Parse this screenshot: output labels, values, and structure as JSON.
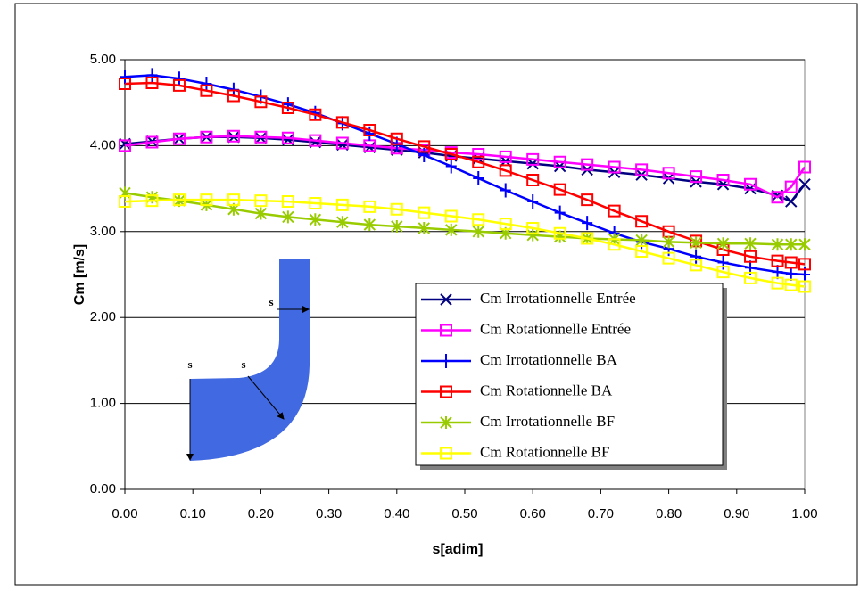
{
  "chart_data": {
    "type": "line",
    "x_label": "s[adim]",
    "y_label": "Cm [m/s]",
    "x": [
      0,
      0.04,
      0.08,
      0.12,
      0.16,
      0.2,
      0.24,
      0.28,
      0.32,
      0.36,
      0.4,
      0.44,
      0.48,
      0.52,
      0.56,
      0.6,
      0.64,
      0.68,
      0.72,
      0.76,
      0.8,
      0.84,
      0.88,
      0.92,
      0.96,
      0.98,
      1.0
    ],
    "series": [
      {
        "name": "Cm Irrotationnelle Entrée",
        "color": "#000080",
        "marker": "x",
        "values": [
          4.02,
          4.05,
          4.08,
          4.1,
          4.1,
          4.09,
          4.07,
          4.04,
          4.01,
          3.98,
          3.95,
          3.92,
          3.88,
          3.85,
          3.82,
          3.79,
          3.76,
          3.72,
          3.69,
          3.66,
          3.62,
          3.58,
          3.55,
          3.5,
          3.42,
          3.35,
          3.55
        ]
      },
      {
        "name": "Cm Rotationnelle Entrée",
        "color": "#ff00ff",
        "marker": "square",
        "values": [
          4.0,
          4.04,
          4.08,
          4.1,
          4.11,
          4.1,
          4.09,
          4.06,
          4.03,
          4.0,
          3.97,
          3.95,
          3.92,
          3.9,
          3.87,
          3.84,
          3.81,
          3.78,
          3.75,
          3.72,
          3.68,
          3.64,
          3.6,
          3.55,
          3.4,
          3.52,
          3.75
        ]
      },
      {
        "name": "Cm Irrotationnelle BA",
        "color": "#0000ff",
        "marker": "plus",
        "values": [
          4.8,
          4.82,
          4.78,
          4.72,
          4.65,
          4.57,
          4.48,
          4.38,
          4.26,
          4.14,
          4.02,
          3.89,
          3.76,
          3.62,
          3.48,
          3.35,
          3.22,
          3.1,
          2.98,
          2.88,
          2.8,
          2.71,
          2.64,
          2.58,
          2.53,
          2.51,
          2.5
        ]
      },
      {
        "name": "Cm Rotationnelle BA",
        "color": "#ff0000",
        "marker": "square",
        "values": [
          4.72,
          4.73,
          4.7,
          4.64,
          4.58,
          4.51,
          4.44,
          4.36,
          4.27,
          4.18,
          4.08,
          3.99,
          3.9,
          3.81,
          3.71,
          3.6,
          3.49,
          3.37,
          3.24,
          3.12,
          3.0,
          2.89,
          2.79,
          2.71,
          2.66,
          2.64,
          2.62
        ]
      },
      {
        "name": "Cm Irrotationnelle BF",
        "color": "#99cc00",
        "marker": "star",
        "values": [
          3.45,
          3.4,
          3.36,
          3.31,
          3.26,
          3.21,
          3.17,
          3.14,
          3.11,
          3.08,
          3.06,
          3.04,
          3.02,
          3.0,
          2.98,
          2.96,
          2.94,
          2.92,
          2.91,
          2.9,
          2.88,
          2.87,
          2.86,
          2.86,
          2.85,
          2.85,
          2.85
        ]
      },
      {
        "name": "Cm Rotationnelle BF",
        "color": "#ffff00",
        "marker": "square",
        "values": [
          3.35,
          3.36,
          3.37,
          3.37,
          3.37,
          3.36,
          3.35,
          3.33,
          3.31,
          3.29,
          3.26,
          3.22,
          3.18,
          3.14,
          3.09,
          3.04,
          2.98,
          2.92,
          2.85,
          2.77,
          2.69,
          2.61,
          2.53,
          2.46,
          2.4,
          2.38,
          2.36
        ]
      }
    ],
    "xlim": [
      0,
      1
    ],
    "ylim": [
      0,
      5
    ],
    "xticks": [
      {
        "value": 0,
        "label": "0.00"
      },
      {
        "value": 0.1,
        "label": "0.10"
      },
      {
        "value": 0.2,
        "label": "0.20"
      },
      {
        "value": 0.3,
        "label": "0.30"
      },
      {
        "value": 0.4,
        "label": "0.40"
      },
      {
        "value": 0.5,
        "label": "0.50"
      },
      {
        "value": 0.6,
        "label": "0.60"
      },
      {
        "value": 0.7,
        "label": "0.70"
      },
      {
        "value": 0.8,
        "label": "0.80"
      },
      {
        "value": 0.9,
        "label": "0.90"
      },
      {
        "value": 1.0,
        "label": "1.00"
      }
    ],
    "yticks": [
      {
        "value": 0,
        "label": "0.00"
      },
      {
        "value": 1,
        "label": "1.00"
      },
      {
        "value": 2,
        "label": "2.00"
      },
      {
        "value": 3,
        "label": "3.00"
      },
      {
        "value": 4,
        "label": "4.00"
      },
      {
        "value": 5,
        "label": "5.00"
      }
    ],
    "grid": true,
    "annotations": [
      "s",
      "s",
      "s"
    ]
  }
}
